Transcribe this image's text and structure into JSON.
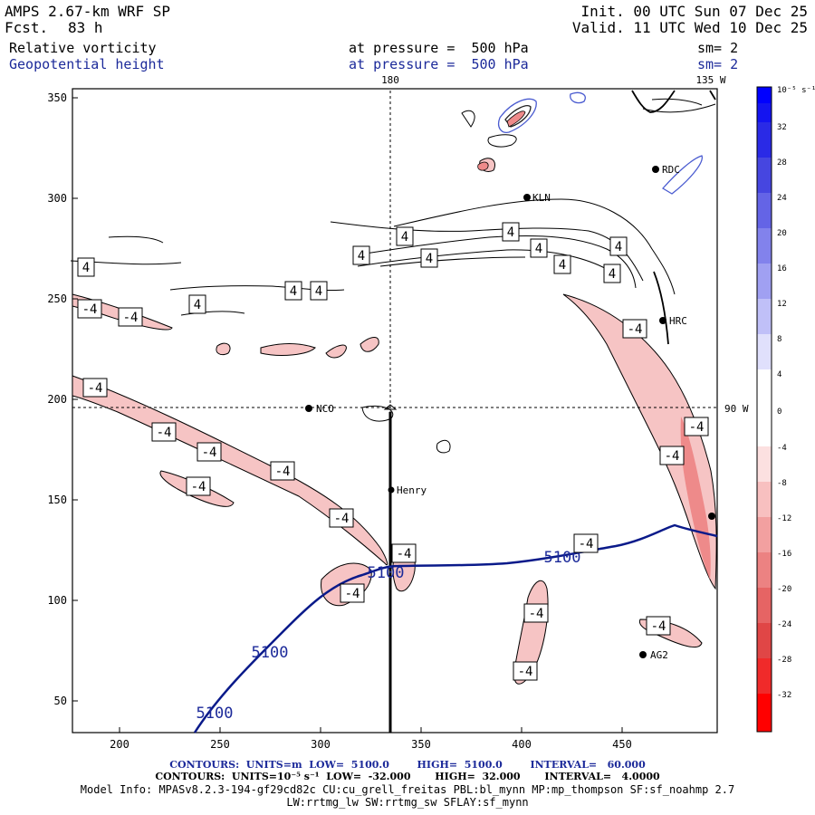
{
  "header": {
    "model": "AMPS 2.67-km WRF SP",
    "fcst_label": "Fcst.",
    "fcst_value": "83 h",
    "init": "Init. 00 UTC Sun 07 Dec 25",
    "valid": "Valid. 11 UTC Wed 10 Dec 25",
    "field1": "Relative vorticity",
    "field1_level": "at pressure =  500 hPa",
    "field1_sm": "sm= 2",
    "field2": "Geopotential height",
    "field2_level": "at pressure =  500 hPa",
    "field2_sm": "sm= 2"
  },
  "map": {
    "x_ticks": [
      "200",
      "250",
      "300",
      "350",
      "400",
      "450"
    ],
    "y_ticks": [
      "350",
      "300",
      "250",
      "200",
      "150",
      "100",
      "50"
    ],
    "meridian_180": "180",
    "meridian_135w": "135 W",
    "parallel_90w": "90 W",
    "stations": [
      {
        "name": "NCO"
      },
      {
        "name": "Henry"
      },
      {
        "name": "KLN"
      },
      {
        "name": "RDC"
      },
      {
        "name": "HRC"
      },
      {
        "name": "AG2"
      }
    ],
    "height_labels": [
      "5100",
      "5100",
      "5100",
      "5100"
    ],
    "vort_labels_pos": [
      "4",
      "4",
      "4",
      "4",
      "4",
      "4",
      "4",
      "4",
      "4",
      "4",
      "4",
      "4"
    ],
    "vort_labels_neg": [
      "-4",
      "-4",
      "-4",
      "-4",
      "-4",
      "-4",
      "-4",
      "-4",
      "-4",
      "-4",
      "-4",
      "-4",
      "-4",
      "-4",
      "-4",
      "-4",
      "-4"
    ],
    "colors": {
      "height_contour": "#0a1a8a",
      "vort_negative_fill": "#f6c4c4",
      "vort_strong_negative": "#ee8a8a",
      "vort_positive": "#4a5bd0"
    }
  },
  "colorbar": {
    "unit": "10⁻⁵ s⁻¹",
    "labels": [
      "32",
      "28",
      "24",
      "20",
      "16",
      "12",
      "8",
      "4",
      "0",
      "-4",
      "-8",
      "-12",
      "-16",
      "-20",
      "-24",
      "-28",
      "-32"
    ]
  },
  "footer": {
    "line1": "CONTOURS:  UNITS=m  LOW=  5100.0        HIGH=  5100.0        INTERVAL=   60.000",
    "line2": "CONTOURS:  UNITS=10⁻⁵ s⁻¹  LOW=  -32.000       HIGH=  32.000       INTERVAL=   4.0000",
    "line3": "Model Info: MPASv8.2.3-194-gf29cd82c CU:cu_grell_freitas PBL:bl_mynn MP:mp_thompson SF:sf_noahmp 2.7",
    "line4": "LW:rrtmg_lw SW:rrtmg_sw SFLAY:sf_mynn"
  }
}
